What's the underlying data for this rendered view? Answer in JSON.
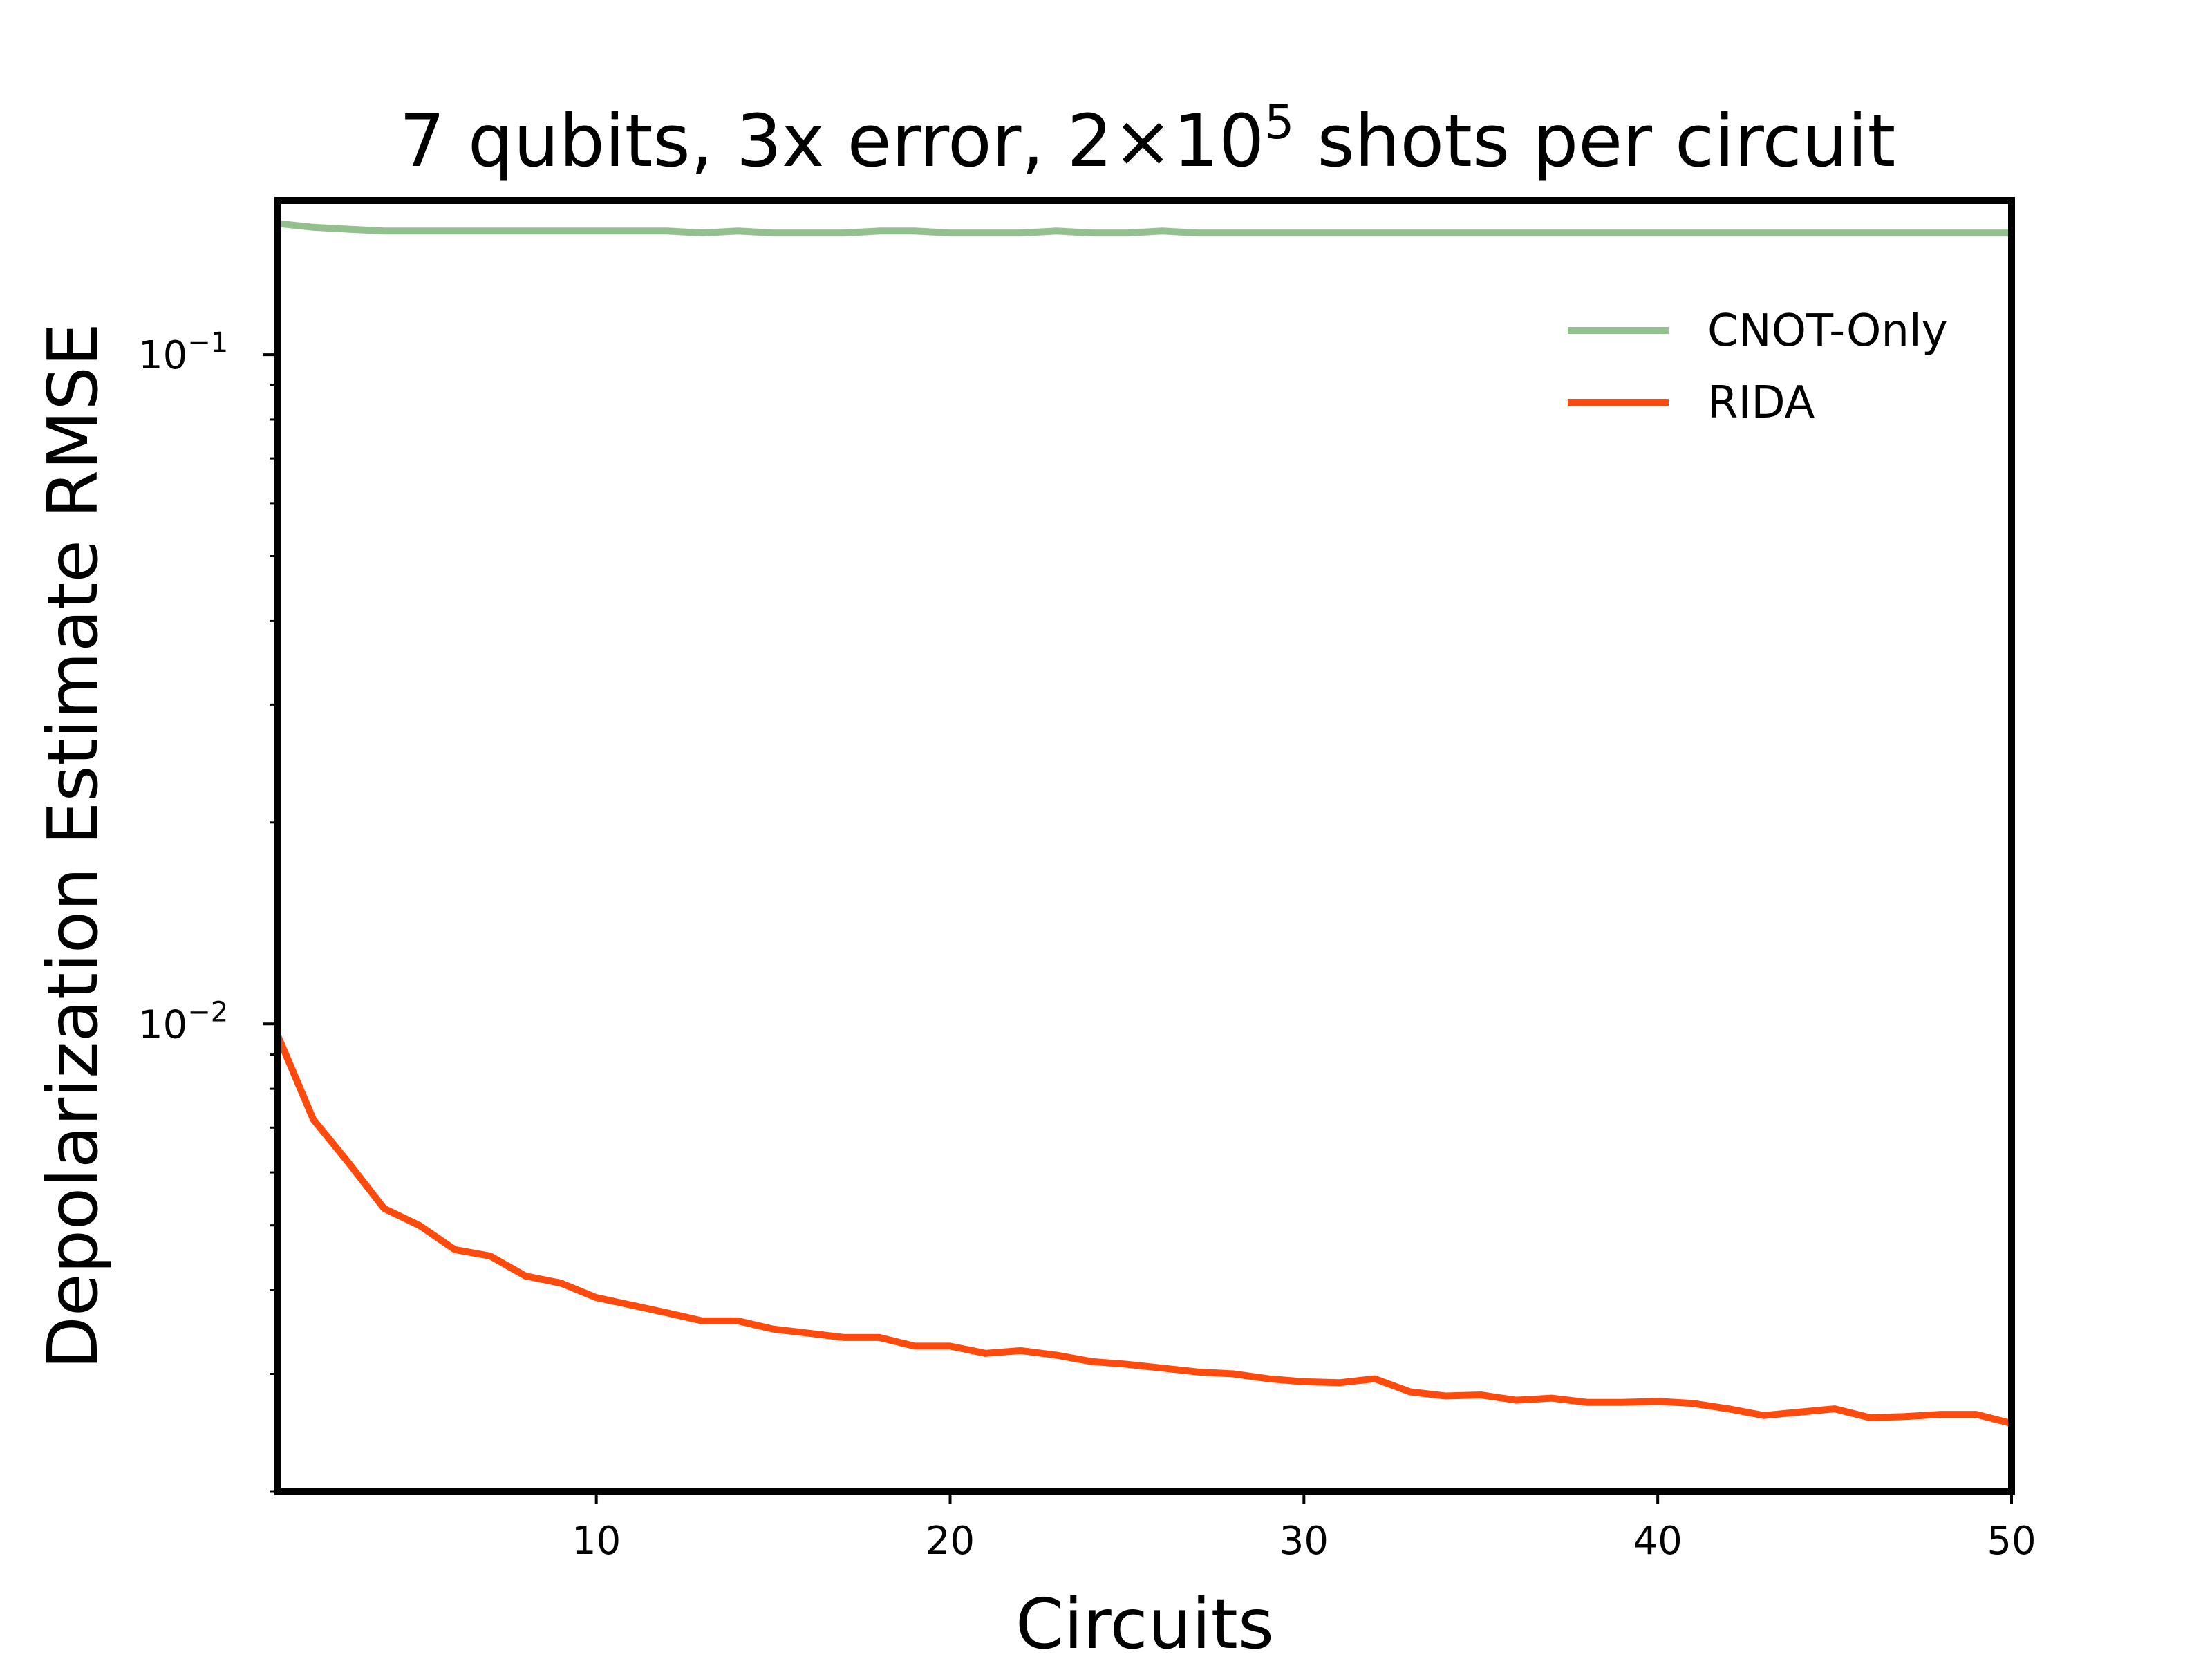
{
  "chart_data": {
    "type": "line",
    "title": {
      "prefix": "7 qubits, 3x error, 2×10",
      "superscript": "5",
      "suffix": " shots per circuit"
    },
    "xlabel": "Circuits",
    "ylabel": "Depolarization Estimate RMSE",
    "xlim": [
      1,
      50
    ],
    "ylim": [
      0.002,
      0.17
    ],
    "yscale": "log",
    "grid": false,
    "legend_position": "upper-right",
    "x_ticks": [
      10,
      20,
      30,
      40,
      50
    ],
    "x_tick_labels": [
      "10",
      "20",
      "30",
      "40",
      "50"
    ],
    "y_major_ticks": [
      {
        "value": 0.1,
        "base": "10",
        "exponent": "−1"
      },
      {
        "value": 0.01,
        "base": "10",
        "exponent": "−2"
      }
    ],
    "y_minor_ticks": [
      0.002,
      0.003,
      0.004,
      0.005,
      0.006,
      0.007,
      0.008,
      0.009,
      0.02,
      0.03,
      0.04,
      0.05,
      0.06,
      0.07,
      0.08,
      0.09
    ],
    "x": [
      1,
      2,
      3,
      4,
      5,
      6,
      7,
      8,
      9,
      10,
      11,
      12,
      13,
      14,
      15,
      16,
      17,
      18,
      19,
      20,
      21,
      22,
      23,
      24,
      25,
      26,
      27,
      28,
      29,
      30,
      31,
      32,
      33,
      34,
      35,
      36,
      37,
      38,
      39,
      40,
      41,
      42,
      43,
      44,
      45,
      46,
      47,
      48,
      49,
      50
    ],
    "series": [
      {
        "name": "CNOT-Only",
        "color": "#93c08e",
        "values": [
          0.157,
          0.155,
          0.154,
          0.153,
          0.153,
          0.153,
          0.153,
          0.153,
          0.153,
          0.153,
          0.153,
          0.153,
          0.152,
          0.153,
          0.152,
          0.152,
          0.152,
          0.153,
          0.153,
          0.152,
          0.152,
          0.152,
          0.153,
          0.152,
          0.152,
          0.153,
          0.152,
          0.152,
          0.152,
          0.152,
          0.152,
          0.152,
          0.152,
          0.152,
          0.152,
          0.152,
          0.152,
          0.152,
          0.152,
          0.152,
          0.152,
          0.152,
          0.152,
          0.152,
          0.152,
          0.152,
          0.152,
          0.152,
          0.152,
          0.152
        ]
      },
      {
        "name": "RIDA",
        "color": "#ff4a0d",
        "values": [
          0.0096,
          0.0072,
          0.0062,
          0.0053,
          0.005,
          0.0046,
          0.0045,
          0.0042,
          0.0041,
          0.0039,
          0.0038,
          0.0037,
          0.0036,
          0.0036,
          0.0035,
          0.00345,
          0.0034,
          0.0034,
          0.0033,
          0.0033,
          0.00322,
          0.00325,
          0.0032,
          0.00313,
          0.0031,
          0.00306,
          0.00302,
          0.003,
          0.00295,
          0.00292,
          0.00291,
          0.00295,
          0.00282,
          0.00278,
          0.00279,
          0.00274,
          0.00276,
          0.00272,
          0.00272,
          0.00273,
          0.00271,
          0.00266,
          0.0026,
          0.00263,
          0.00266,
          0.00258,
          0.00259,
          0.00261,
          0.00261,
          0.00253
        ]
      }
    ]
  }
}
